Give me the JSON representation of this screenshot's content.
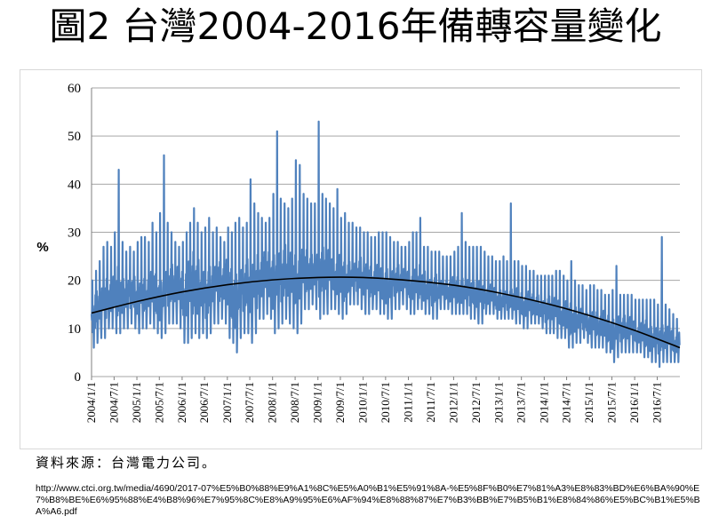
{
  "title": "圖2 台灣2004-2016年備轉容量變化",
  "source": "資料來源：台灣電力公司。",
  "url": "http://www.ctci.org.tw/media/4690/2017-07%E5%B0%88%E9%A1%8C%E5%A0%B1%E5%91%8A-%E5%8F%B0%E7%81%A3%E8%83%BD%E6%BA%90%E7%B8%BE%E6%95%88%E4%B8%96%E7%95%8C%E8%A9%95%E6%AF%94%E8%88%87%E7%B3%BB%E7%B5%B1%E8%84%86%E5%BC%B1%E5%BA%A6.pdf",
  "colors": {
    "series": "#4f81bd",
    "trend": "#000000",
    "grid": "#a6a6a6"
  },
  "chart_data": {
    "type": "line",
    "title": "",
    "xlabel": "",
    "ylabel": "%",
    "ylim": [
      0,
      60
    ],
    "yticks": [
      0,
      10,
      20,
      30,
      40,
      50,
      60
    ],
    "xlim": [
      "2004-01-01",
      "2016-12-31"
    ],
    "grid": true,
    "legend": "none",
    "x_tick_labels": [
      "2004/1/1",
      "2004/7/1",
      "2005/1/1",
      "2005/7/1",
      "2006/1/1",
      "2006/7/1",
      "2007/1/1",
      "2007/7/1",
      "2008/1/1",
      "2008/7/1",
      "2009/1/1",
      "2009/7/1",
      "2010/1/1",
      "2010/7/1",
      "2011/1/1",
      "2011/7/1",
      "2012/1/1",
      "2012/7/1",
      "2013/1/1",
      "2013/7/1",
      "2014/1/1",
      "2014/7/1",
      "2015/1/1",
      "2015/7/1",
      "2016/1/1",
      "2016/7/1"
    ],
    "series": [
      {
        "name": "",
        "kind": "daily",
        "x": [
          "2004-01-01",
          "2004-02-01",
          "2004-03-01",
          "2004-04-01",
          "2004-05-01",
          "2004-06-01",
          "2004-07-01",
          "2004-08-01",
          "2004-09-01",
          "2004-10-01",
          "2004-11-01",
          "2004-12-01",
          "2005-01-01",
          "2005-02-01",
          "2005-03-01",
          "2005-04-01",
          "2005-05-01",
          "2005-06-01",
          "2005-07-01",
          "2005-08-01",
          "2005-09-01",
          "2005-10-01",
          "2005-11-01",
          "2005-12-01",
          "2006-01-01",
          "2006-02-01",
          "2006-03-01",
          "2006-04-01",
          "2006-05-01",
          "2006-06-01",
          "2006-07-01",
          "2006-08-01",
          "2006-09-01",
          "2006-10-01",
          "2006-11-01",
          "2006-12-01",
          "2007-01-01",
          "2007-02-01",
          "2007-03-01",
          "2007-04-01",
          "2007-05-01",
          "2007-06-01",
          "2007-07-01",
          "2007-08-01",
          "2007-09-01",
          "2007-10-01",
          "2007-11-01",
          "2007-12-01",
          "2008-01-01",
          "2008-02-01",
          "2008-03-01",
          "2008-04-01",
          "2008-05-01",
          "2008-06-01",
          "2008-07-01",
          "2008-08-01",
          "2008-09-01",
          "2008-10-01",
          "2008-11-01",
          "2008-12-01",
          "2009-01-01",
          "2009-02-01",
          "2009-03-01",
          "2009-04-01",
          "2009-05-01",
          "2009-06-01",
          "2009-07-01",
          "2009-08-01",
          "2009-09-01",
          "2009-10-01",
          "2009-11-01",
          "2009-12-01",
          "2010-01-01",
          "2010-02-01",
          "2010-03-01",
          "2010-04-01",
          "2010-05-01",
          "2010-06-01",
          "2010-07-01",
          "2010-08-01",
          "2010-09-01",
          "2010-10-01",
          "2010-11-01",
          "2010-12-01",
          "2011-01-01",
          "2011-02-01",
          "2011-03-01",
          "2011-04-01",
          "2011-05-01",
          "2011-06-01",
          "2011-07-01",
          "2011-08-01",
          "2011-09-01",
          "2011-10-01",
          "2011-11-01",
          "2011-12-01",
          "2012-01-01",
          "2012-02-01",
          "2012-03-01",
          "2012-04-01",
          "2012-05-01",
          "2012-06-01",
          "2012-07-01",
          "2012-08-01",
          "2012-09-01",
          "2012-10-01",
          "2012-11-01",
          "2012-12-01",
          "2013-01-01",
          "2013-02-01",
          "2013-03-01",
          "2013-04-01",
          "2013-05-01",
          "2013-06-01",
          "2013-07-01",
          "2013-08-01",
          "2013-09-01",
          "2013-10-01",
          "2013-11-01",
          "2013-12-01",
          "2014-01-01",
          "2014-02-01",
          "2014-03-01",
          "2014-04-01",
          "2014-05-01",
          "2014-06-01",
          "2014-07-01",
          "2014-08-01",
          "2014-09-01",
          "2014-10-01",
          "2014-11-01",
          "2014-12-01",
          "2015-01-01",
          "2015-02-01",
          "2015-03-01",
          "2015-04-01",
          "2015-05-01",
          "2015-06-01",
          "2015-07-01",
          "2015-08-01",
          "2015-09-01",
          "2015-10-01",
          "2015-11-01",
          "2015-12-01",
          "2016-01-01",
          "2016-02-01",
          "2016-03-01",
          "2016-04-01",
          "2016-05-01",
          "2016-06-01",
          "2016-07-01",
          "2016-08-01",
          "2016-09-01",
          "2016-10-01",
          "2016-11-01",
          "2016-12-01"
        ],
        "low": [
          6,
          7,
          8,
          8,
          10,
          10,
          9,
          9,
          10,
          10,
          11,
          10,
          9,
          10,
          10,
          11,
          10,
          9,
          8,
          9,
          11,
          11,
          11,
          10,
          7,
          7,
          8,
          9,
          8,
          9,
          8,
          9,
          11,
          11,
          12,
          11,
          8,
          7,
          5,
          8,
          9,
          9,
          7,
          9,
          12,
          12,
          13,
          12,
          9,
          10,
          11,
          12,
          11,
          10,
          9,
          11,
          14,
          14,
          15,
          14,
          12,
          13,
          13,
          14,
          14,
          13,
          12,
          13,
          15,
          15,
          15,
          14,
          13,
          13,
          14,
          14,
          13,
          13,
          12,
          12,
          14,
          14,
          15,
          14,
          13,
          13,
          14,
          14,
          13,
          13,
          12,
          12,
          14,
          14,
          14,
          13,
          13,
          13,
          13,
          13,
          12,
          12,
          11,
          11,
          13,
          13,
          13,
          12,
          12,
          12,
          12,
          12,
          11,
          11,
          10,
          10,
          11,
          11,
          11,
          10,
          9,
          9,
          9,
          8,
          8,
          8,
          6,
          6,
          7,
          7,
          8,
          7,
          6,
          6,
          6,
          6,
          5,
          5,
          3,
          4,
          5,
          5,
          5,
          5,
          5,
          5,
          4,
          4,
          3,
          3,
          2,
          3,
          3,
          3,
          3,
          3
        ],
        "high": [
          20,
          22,
          24,
          27,
          28,
          27,
          30,
          43,
          28,
          26,
          27,
          26,
          28,
          29,
          29,
          28,
          32,
          30,
          34,
          46,
          32,
          30,
          28,
          27,
          28,
          30,
          32,
          35,
          32,
          30,
          31,
          33,
          30,
          31,
          29,
          28,
          31,
          30,
          32,
          33,
          31,
          32,
          41,
          36,
          34,
          33,
          32,
          33,
          38,
          51,
          37,
          36,
          35,
          37,
          45,
          44,
          38,
          37,
          36,
          36,
          53,
          38,
          37,
          36,
          35,
          39,
          33,
          34,
          32,
          32,
          31,
          31,
          30,
          30,
          29,
          29,
          30,
          30,
          30,
          29,
          28,
          28,
          27,
          27,
          28,
          30,
          30,
          33,
          27,
          27,
          26,
          26,
          26,
          25,
          25,
          25,
          26,
          27,
          34,
          28,
          27,
          27,
          27,
          27,
          26,
          25,
          25,
          24,
          24,
          25,
          24,
          36,
          24,
          24,
          23,
          23,
          22,
          22,
          21,
          21,
          21,
          21,
          21,
          22,
          22,
          21,
          20,
          24,
          20,
          19,
          19,
          18,
          19,
          19,
          18,
          18,
          17,
          17,
          18,
          23,
          17,
          17,
          17,
          17,
          16,
          16,
          16,
          16,
          16,
          16,
          15,
          29,
          15,
          14,
          13,
          12
        ],
        "mid": [
          13,
          14,
          15,
          16,
          17,
          17,
          17,
          18,
          17,
          17,
          18,
          17,
          16,
          17,
          17,
          18,
          18,
          17,
          16,
          18,
          19,
          19,
          19,
          18,
          17,
          18,
          19,
          20,
          19,
          18,
          17,
          18,
          19,
          20,
          20,
          20,
          18,
          17,
          16,
          18,
          19,
          19,
          18,
          19,
          21,
          21,
          21,
          21,
          20,
          21,
          21,
          22,
          21,
          20,
          20,
          21,
          22,
          22,
          22,
          22,
          22,
          22,
          22,
          22,
          21,
          21,
          20,
          20,
          21,
          21,
          21,
          21,
          20,
          20,
          20,
          20,
          20,
          19,
          19,
          19,
          20,
          20,
          20,
          20,
          19,
          19,
          19,
          20,
          19,
          18,
          18,
          18,
          18,
          18,
          18,
          18,
          18,
          18,
          18,
          18,
          18,
          17,
          17,
          17,
          17,
          17,
          17,
          16,
          16,
          16,
          16,
          16,
          16,
          15,
          15,
          15,
          15,
          15,
          15,
          14,
          14,
          14,
          14,
          14,
          13,
          13,
          12,
          12,
          12,
          12,
          12,
          11,
          11,
          11,
          11,
          11,
          10,
          10,
          9,
          10,
          10,
          10,
          10,
          10,
          9,
          9,
          9,
          9,
          8,
          8,
          8,
          8,
          8,
          8,
          7,
          7
        ]
      },
      {
        "name": "",
        "kind": "trend",
        "x": [
          "2004-01-01",
          "2005-01-01",
          "2006-01-01",
          "2007-01-01",
          "2008-01-01",
          "2009-01-01",
          "2010-01-01",
          "2011-01-01",
          "2012-01-01",
          "2013-01-01",
          "2014-01-01",
          "2015-01-01",
          "2016-01-01",
          "2016-12-31"
        ],
        "values": [
          13.2,
          15.6,
          17.6,
          19.1,
          20.1,
          20.6,
          20.6,
          20.0,
          19.0,
          17.4,
          15.3,
          12.7,
          9.6,
          6.0
        ]
      }
    ]
  }
}
